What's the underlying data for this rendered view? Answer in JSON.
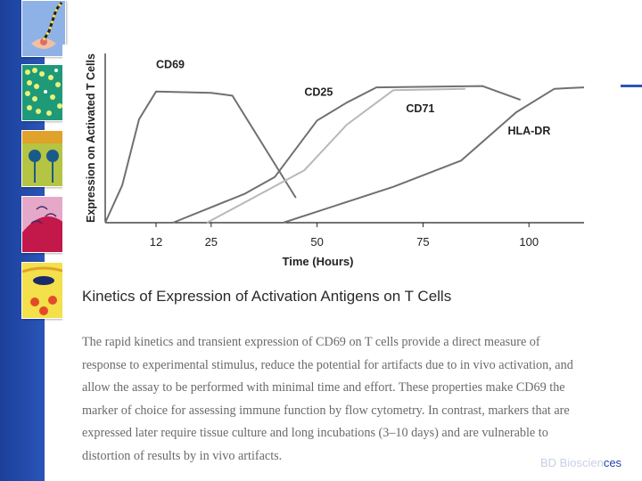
{
  "chart_data": {
    "type": "line",
    "ylabel": "Expression on Activated T Cells",
    "xlabel": "Time (Hours)",
    "x_ticks": [
      12,
      25,
      50,
      75,
      100
    ],
    "xlim": [
      0,
      113
    ],
    "ylim": [
      0,
      100
    ],
    "grid": false,
    "series": [
      {
        "name": "CD69",
        "color": "#707070",
        "points": [
          [
            0,
            0
          ],
          [
            4,
            27
          ],
          [
            8,
            75
          ],
          [
            12,
            95
          ],
          [
            25,
            94
          ],
          [
            30,
            92
          ],
          [
            45,
            18
          ]
        ]
      },
      {
        "name": "CD25",
        "color": "#707070",
        "points": [
          [
            16,
            0
          ],
          [
            33,
            21
          ],
          [
            40,
            33
          ],
          [
            50,
            74
          ],
          [
            57,
            87
          ],
          [
            64,
            98
          ],
          [
            89,
            99
          ],
          [
            98,
            89
          ]
        ]
      },
      {
        "name": "CD71",
        "color": "#b8b8b8",
        "points": [
          [
            24,
            0
          ],
          [
            47,
            38
          ],
          [
            57,
            71
          ],
          [
            68,
            96
          ],
          [
            85,
            97
          ]
        ]
      },
      {
        "name": "HLA-DR",
        "color": "#707070",
        "points": [
          [
            42,
            0
          ],
          [
            68,
            26
          ],
          [
            84,
            45
          ],
          [
            97,
            80
          ],
          [
            106,
            97
          ],
          [
            113,
            98
          ]
        ]
      }
    ]
  },
  "caption": "Kinetics of Expression of Activation Antigens on T Cells",
  "body_lines": [
    "The rapid kinetics and transient expression of CD69 on T cells provide a direct measure of",
    "response to experimental stimulus, reduce the potential for artifacts due to in vivo activation, and",
    "allow the assay to be performed with minimal time and effort. These properties make CD69 the",
    "marker of choice for assessing immune function by flow cytometry. In contrast, markers that are",
    "expressed later require tissue culture and long incubations (3–10 days) and are vulnerable to",
    "distortion of results by in vivo artifacts."
  ],
  "brand": {
    "dim": "BD Bioscien",
    "main": "ces"
  },
  "colors": {
    "sidebar": "#1c3f9a",
    "accent": "#2a55b8",
    "brand": "#2244aa"
  }
}
